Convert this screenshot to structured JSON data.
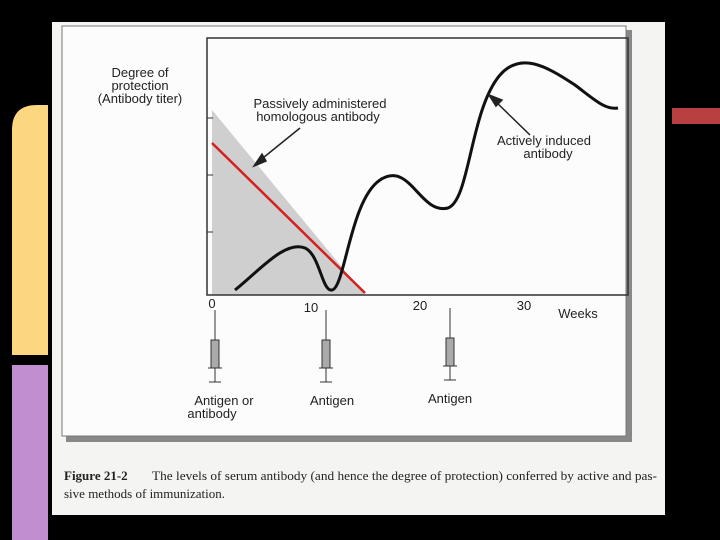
{
  "figure": {
    "y_axis_label": [
      "Degree of",
      "protection",
      "(Antibody titer)"
    ],
    "passive_annotation": [
      "Passively administered",
      "homologous antibody"
    ],
    "active_annotation": [
      "Actively induced",
      "antibody"
    ],
    "x_ticks": [
      "0",
      "10",
      "20",
      "30"
    ],
    "x_axis_label": "Weeks",
    "syringe_labels": [
      [
        "Antigen or",
        "antibody"
      ],
      [
        "Antigen"
      ],
      [
        "Antigen"
      ]
    ]
  },
  "caption": {
    "label": "Figure 21-2",
    "lines": [
      "The levels of serum antibody (and hence the degree of protection) conferred by active and pas-",
      "sive methods of immunization."
    ]
  }
}
